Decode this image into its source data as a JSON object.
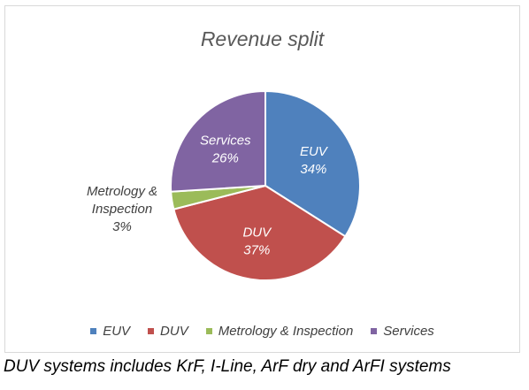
{
  "chart_data": {
    "type": "pie",
    "title": "Revenue split",
    "categories": [
      "EUV",
      "DUV",
      "Metrology & Inspection",
      "Services"
    ],
    "values": [
      34,
      37,
      3,
      26
    ],
    "unit": "%",
    "colors": [
      "#4f81bd",
      "#c0504d",
      "#9bbb59",
      "#8064a2"
    ],
    "data_labels": [
      {
        "name": "EUV",
        "pct": "34%"
      },
      {
        "name": "DUV",
        "pct": "37%"
      },
      {
        "name": "Metrology & Inspection",
        "pct": "3%"
      },
      {
        "name": "Services",
        "pct": "26%"
      }
    ],
    "legend_position": "bottom"
  },
  "caption": "DUV systems includes KrF, I-Line, ArF dry and ArFI systems"
}
